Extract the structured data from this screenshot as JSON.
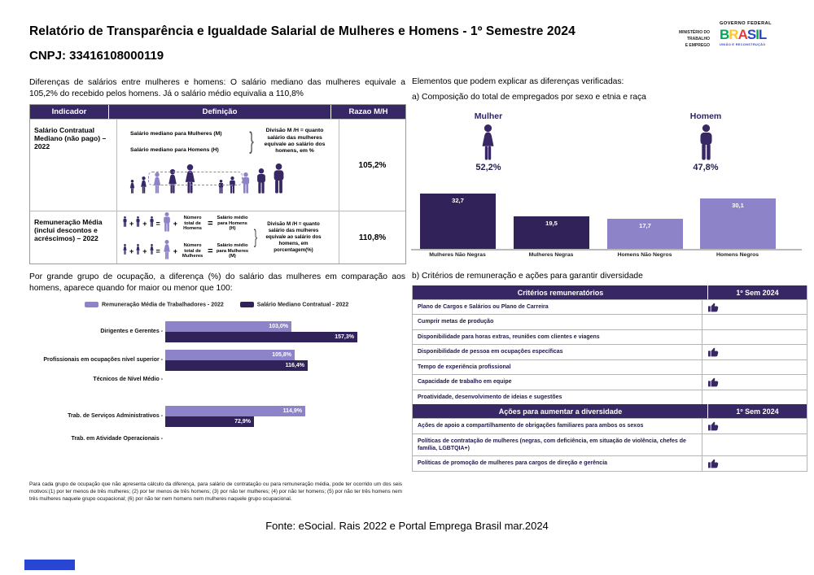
{
  "colors": {
    "dark_purple": "#372765",
    "bar_dark": "#32225a",
    "light_purple": "#8d83c9",
    "navy_text": "#1e1a4a",
    "blue_bar": "#2946d2",
    "brasil_letters": [
      "#00a859",
      "#fdc82f",
      "#e23d3d",
      "#2748c7",
      "#00a859",
      "#2748c7"
    ]
  },
  "header": {
    "title": "Relatório de Transparência e Igualdade Salarial de Mulheres e Homens - 1º Semestre 2024",
    "cnpj": "CNPJ: 33416108000119",
    "ministry": [
      "MINISTÉRIO DO",
      "TRABALHO",
      "E EMPREGO"
    ],
    "gov": {
      "federal": "GOVERNO FEDERAL",
      "brasil": "BRASIL",
      "uniao": "UNIÃO E RECONSTRUÇÃO"
    }
  },
  "left": {
    "intro": "Diferenças de salários entre mulheres e homens: O salário mediano das mulheres equivale a 105,2% do recebido pelos homens. Já o salário médio equivalia a 110,8%",
    "table": {
      "headers": [
        "Indicador",
        "Definição",
        "Razao M/H"
      ],
      "row1": {
        "indicator": "Salário Contratual Mediano (não pago) – 2022",
        "def_line1": "Salário mediano para Mulheres (M)",
        "def_line2": "Salário mediano para Homens (H)",
        "def_note": "Divisão M /H = quanto salário das mulheres equivale ao salário dos homens, em %",
        "ratio": "105,2%"
      },
      "row2": {
        "indicator": "Remuneração Média (inclui descontos e acréscimos) – 2022",
        "men_count": "Número total de Homens",
        "men_avg": "Salário médio para Homens (H)",
        "women_count": "Número total de Mulheres",
        "women_avg": "Salário médio para Mulheres (M)",
        "def_note": "Divisão M /H = quanto salário das mulheres equivale ao salário dos homens, em porcentagem(%)",
        "ratio": "110,8%"
      }
    },
    "occupation_intro": "Por grande grupo de ocupação, a diferença (%) do salário das mulheres em comparação aos homens, aparece quando for maior ou menor que 100:",
    "footnote": "Para cada grupo de ocupação que não apresenta cálculo da diferença, para salário de contratação ou para remuneração média, pode ter ocorrido um dos seis motivos:(1) por ter menos de três mulheres; (2) por ter menos de três homens; (3) por não ter mulheres; (4) por não ter homens; (5) por não ter três homens nem três mulheres naquele grupo ocupacional; (6) por não ter nem homens nem mulheres naquele grupo ocupacional."
  },
  "right": {
    "intro": "Elementos que podem explicar as diferenças verificadas:",
    "section_a": {
      "title": "a) Composição do total de empregados por sexo e etnia e raça",
      "mulher_label": "Mulher",
      "mulher_pct": "52,2%",
      "homem_label": "Homem",
      "homem_pct": "47,8%"
    },
    "section_b": {
      "title": "b) Critérios de remuneração e ações para garantir diversidade",
      "criterios": {
        "header": [
          "Critérios remuneratórios",
          "1º Sem 2024"
        ],
        "rows": [
          {
            "label": "Plano de Cargos e Salários ou Plano de Carreira",
            "checked": true
          },
          {
            "label": "Cumprir metas de produção",
            "checked": false
          },
          {
            "label": "Disponibilidade para horas extras, reuniões com clientes e viagens",
            "checked": false
          },
          {
            "label": "Disponibilidade de pessoa em ocupações específicas",
            "checked": true
          },
          {
            "label": "Tempo de experiência profissional",
            "checked": false
          },
          {
            "label": "Capacidade de trabalho em equipe",
            "checked": true
          },
          {
            "label": "Proatividade, desenvolvimento de ideias e sugestões",
            "checked": false
          }
        ]
      },
      "acoes": {
        "header": [
          "Ações para aumentar a diversidade",
          "1º Sem 2024"
        ],
        "rows": [
          {
            "label": "Ações de apoio a compartilhamento de obrigações familiares para ambos os sexos",
            "checked": true
          },
          {
            "label": "Políticas de contratação de mulheres (negras, com deficiência, em situação de violência, chefes de família, LGBTQIA+)",
            "checked": false
          },
          {
            "label": "Políticas de promoção de mulheres para cargos de direção e gerência",
            "checked": true
          }
        ]
      }
    }
  },
  "footer": {
    "source": "Fonte: eSocial. Rais 2022 e Portal Emprega Brasil mar.2024"
  },
  "chart_data": [
    {
      "type": "bar",
      "title": "a) Composição do total de empregados por sexo e etnia e raça",
      "categories": [
        "Mulheres Não Negras",
        "Mulheres Negras",
        "Homens Não Negros",
        "Homens Negros"
      ],
      "values": [
        32.7,
        19.5,
        17.7,
        30.1
      ],
      "value_labels": [
        "32,7",
        "19,5",
        "17,7",
        "30,1"
      ],
      "bar_colors": [
        "dark",
        "dark",
        "light",
        "light"
      ],
      "xlabel": "",
      "ylabel": "",
      "ylim": [
        0,
        35
      ],
      "grid": false,
      "unit": "%"
    },
    {
      "type": "bar",
      "orientation": "horizontal",
      "title": "Por grande grupo de ocupação, a diferença (%) do salário das mulheres em comparação aos homens, aparece quando for maior ou menor que 100:",
      "categories": [
        "Dirigentes e Gerentes",
        "Profissionais em ocupações nível superior",
        "Técnicos de Nível Médio",
        "Trab. de Serviços Administrativos",
        "Trab. em Atividade Operacionais"
      ],
      "series": [
        {
          "name": "Remuneração Média de Trabalhadores - 2022",
          "color": "light",
          "values": [
            103.0,
            105.8,
            null,
            114.9,
            null
          ],
          "value_labels": [
            "103,0%",
            "105,8%",
            null,
            "114,9%",
            null
          ]
        },
        {
          "name": "Salário Mediano Contratual - 2022",
          "color": "dark",
          "values": [
            157.3,
            116.4,
            null,
            72.9,
            null
          ],
          "value_labels": [
            "157,3%",
            "116,4%",
            null,
            "72,9%",
            null
          ]
        }
      ],
      "xlim": [
        0,
        170
      ],
      "grid": false,
      "legend_position": "top"
    }
  ]
}
